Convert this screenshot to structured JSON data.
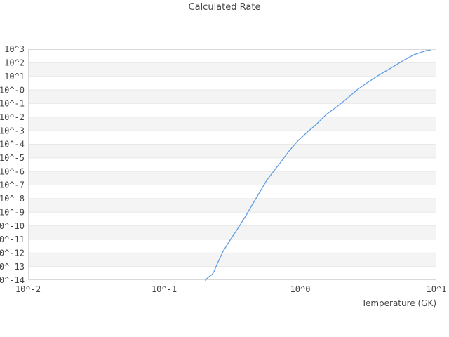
{
  "chart": {
    "title": "Calculated Rate"
  },
  "colors": {
    "line": "#619ee3",
    "band_light": "#ffffff",
    "band_shaded": "#f4f4f4",
    "gridline": "#e8e8e8",
    "plot_border": "#d9d9d9",
    "text": "#454545",
    "background": "#ffffff"
  },
  "chart_data": {
    "type": "line",
    "title": "Calculated Rate",
    "xlabel": "Temperature (GK)",
    "ylabel": "",
    "x_scale": "log",
    "y_scale": "log",
    "x_unit": "GK",
    "xlim_log10": [
      -2,
      1
    ],
    "ylim_log10": [
      -14,
      3
    ],
    "x_tick_labels": [
      "10^-2",
      "10^-1",
      "10^0",
      "10^1"
    ],
    "x_tick_log10": [
      -2,
      -1,
      0,
      1
    ],
    "y_tick_labels": [
      "10^3",
      "10^2",
      "10^1",
      "10^-0",
      "10^-1",
      "10^-2",
      "10^-3",
      "10^-4",
      "10^-5",
      "10^-6",
      "10^-7",
      "10^-8",
      "10^-9",
      "10^-10",
      "10^-11",
      "10^-12",
      "10^-13",
      "10^-14"
    ],
    "y_tick_log10": [
      3,
      2,
      1,
      0,
      -1,
      -2,
      -3,
      -4,
      -5,
      -6,
      -7,
      -8,
      -9,
      -10,
      -11,
      -12,
      -13,
      -14
    ],
    "grid": "horizontal-bands-only",
    "legend": "none",
    "band_pattern": "alternating white/shaded per decade, white at top",
    "series": [
      {
        "name": "calculated-rate",
        "points_log10": [
          [
            -0.698,
            -14.0
          ],
          [
            -0.67,
            -13.74
          ],
          [
            -0.649,
            -13.59
          ],
          [
            -0.634,
            -13.38
          ],
          [
            -0.608,
            -12.76
          ],
          [
            -0.567,
            -11.88
          ],
          [
            -0.515,
            -11.05
          ],
          [
            -0.464,
            -10.28
          ],
          [
            -0.402,
            -9.3
          ],
          [
            -0.351,
            -8.42
          ],
          [
            -0.299,
            -7.54
          ],
          [
            -0.247,
            -6.66
          ],
          [
            -0.196,
            -5.99
          ],
          [
            -0.144,
            -5.32
          ],
          [
            -0.082,
            -4.49
          ],
          [
            -0.015,
            -3.72
          ],
          [
            0.047,
            -3.15
          ],
          [
            0.113,
            -2.58
          ],
          [
            0.191,
            -1.8
          ],
          [
            0.268,
            -1.24
          ],
          [
            0.345,
            -0.62
          ],
          [
            0.423,
            0.05
          ],
          [
            0.49,
            0.52
          ],
          [
            0.577,
            1.09
          ],
          [
            0.665,
            1.6
          ],
          [
            0.758,
            2.17
          ],
          [
            0.835,
            2.59
          ],
          [
            0.887,
            2.77
          ],
          [
            0.928,
            2.9
          ],
          [
            0.954,
            2.92
          ]
        ]
      }
    ]
  }
}
